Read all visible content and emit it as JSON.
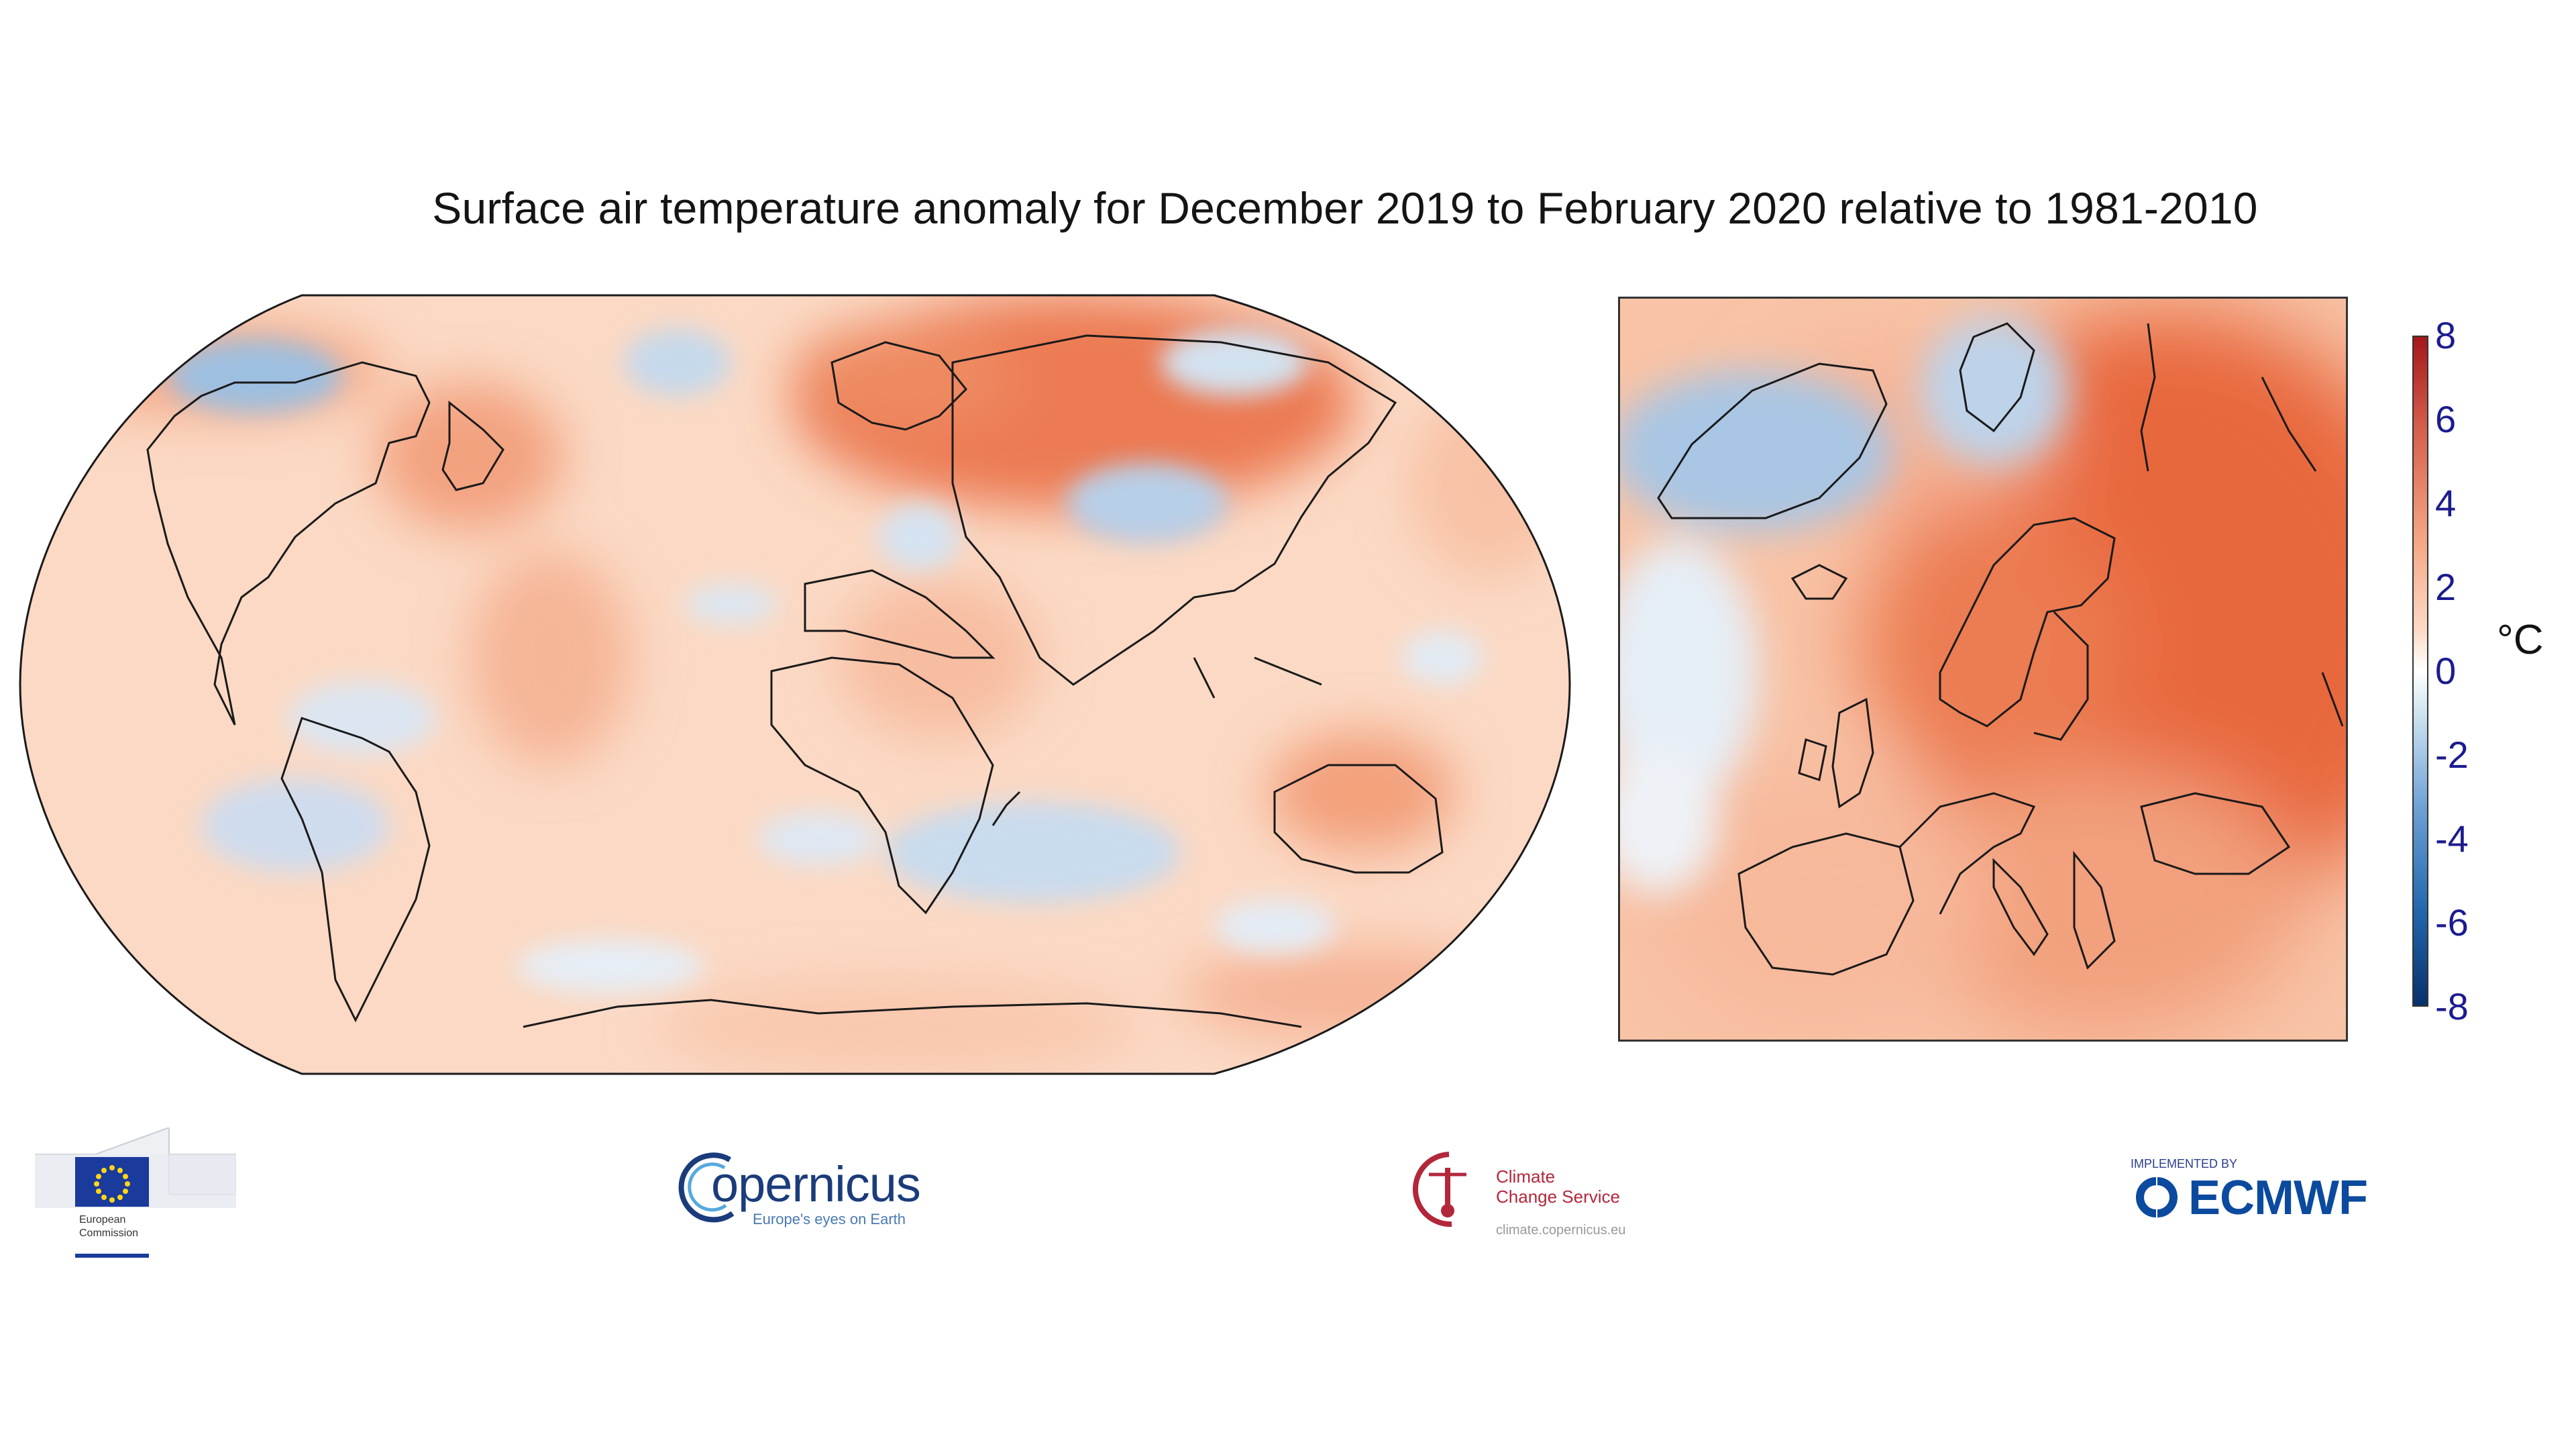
{
  "title": "Surface air temperature anomaly for December 2019 to February 2020 relative to 1981-2010",
  "colorbar": {
    "unit": "°C",
    "ticks": [
      "8",
      "6",
      "4",
      "2",
      "0",
      "-2",
      "-4",
      "-6",
      "-8"
    ],
    "min": -8,
    "max": 8,
    "colors": [
      "#08306b",
      "#2166ac",
      "#6fa3d5",
      "#d1e5f0",
      "#ffffff",
      "#fddbc7",
      "#f4a582",
      "#d6604d",
      "#a4161a"
    ]
  },
  "maps": {
    "world": {
      "name": "global anomaly map"
    },
    "inset": {
      "name": "europe anomaly map"
    }
  },
  "logos": {
    "ec": {
      "lines": [
        "European",
        "Commission"
      ]
    },
    "copernicus": {
      "word": "opernicus",
      "initial": "C",
      "sub": "Europe's eyes on Earth"
    },
    "c3s": {
      "lines": [
        "Climate",
        "Change Service"
      ],
      "sub": "climate.copernicus.eu"
    },
    "ecmwf": {
      "pre": "IMPLEMENTED BY",
      "word": "ECMWF"
    }
  }
}
